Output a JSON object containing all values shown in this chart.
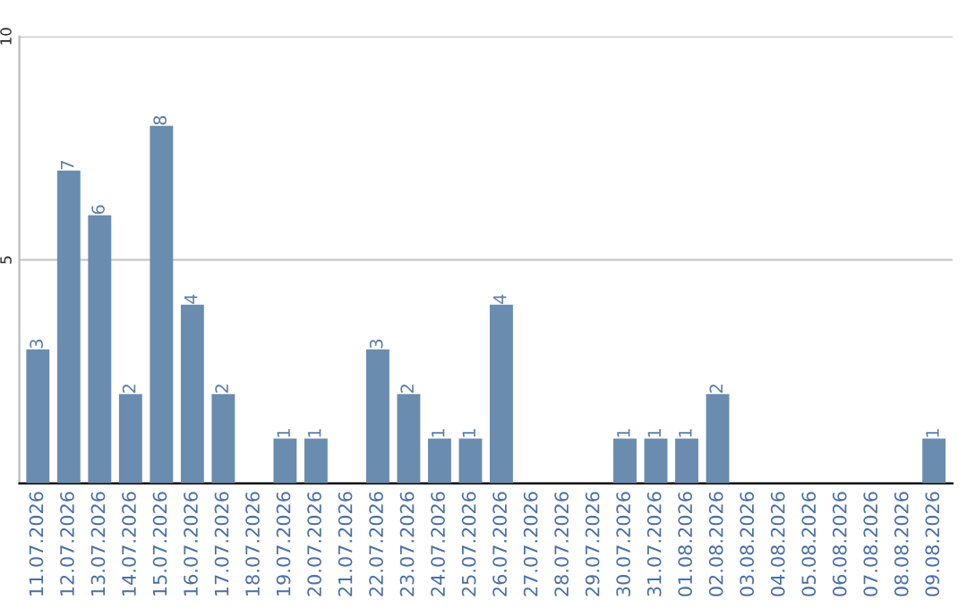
{
  "chart_data": {
    "type": "bar",
    "categories": [
      "11.07.2026",
      "12.07.2026",
      "13.07.2026",
      "14.07.2026",
      "15.07.2026",
      "16.07.2026",
      "17.07.2026",
      "18.07.2026",
      "19.07.2026",
      "20.07.2026",
      "21.07.2026",
      "22.07.2026",
      "23.07.2026",
      "24.07.2026",
      "25.07.2026",
      "26.07.2026",
      "27.07.2026",
      "28.07.2026",
      "29.07.2026",
      "30.07.2026",
      "31.07.2026",
      "01.08.2026",
      "02.08.2026",
      "03.08.2026",
      "04.08.2026",
      "05.08.2026",
      "06.08.2026",
      "07.08.2026",
      "08.08.2026",
      "09.08.2026"
    ],
    "values": [
      3,
      7,
      6,
      2,
      8,
      4,
      2,
      0,
      1,
      1,
      0,
      3,
      2,
      1,
      1,
      4,
      0,
      0,
      0,
      1,
      1,
      1,
      2,
      0,
      0,
      0,
      0,
      0,
      0,
      1
    ],
    "value_labels": [
      "3",
      "7",
      "6",
      "2",
      "8",
      "4",
      "2",
      null,
      "1",
      "1",
      null,
      "3",
      "2",
      "1",
      "1",
      "4",
      null,
      null,
      null,
      "1",
      "1",
      "1",
      "2",
      null,
      null,
      null,
      null,
      null,
      null,
      "1"
    ],
    "color": "#6a8caf",
    "ylim": [
      0,
      10
    ],
    "yticks": [
      {
        "value": 0,
        "label": null
      },
      5,
      10
    ],
    "grid": "y",
    "legend": false
  }
}
